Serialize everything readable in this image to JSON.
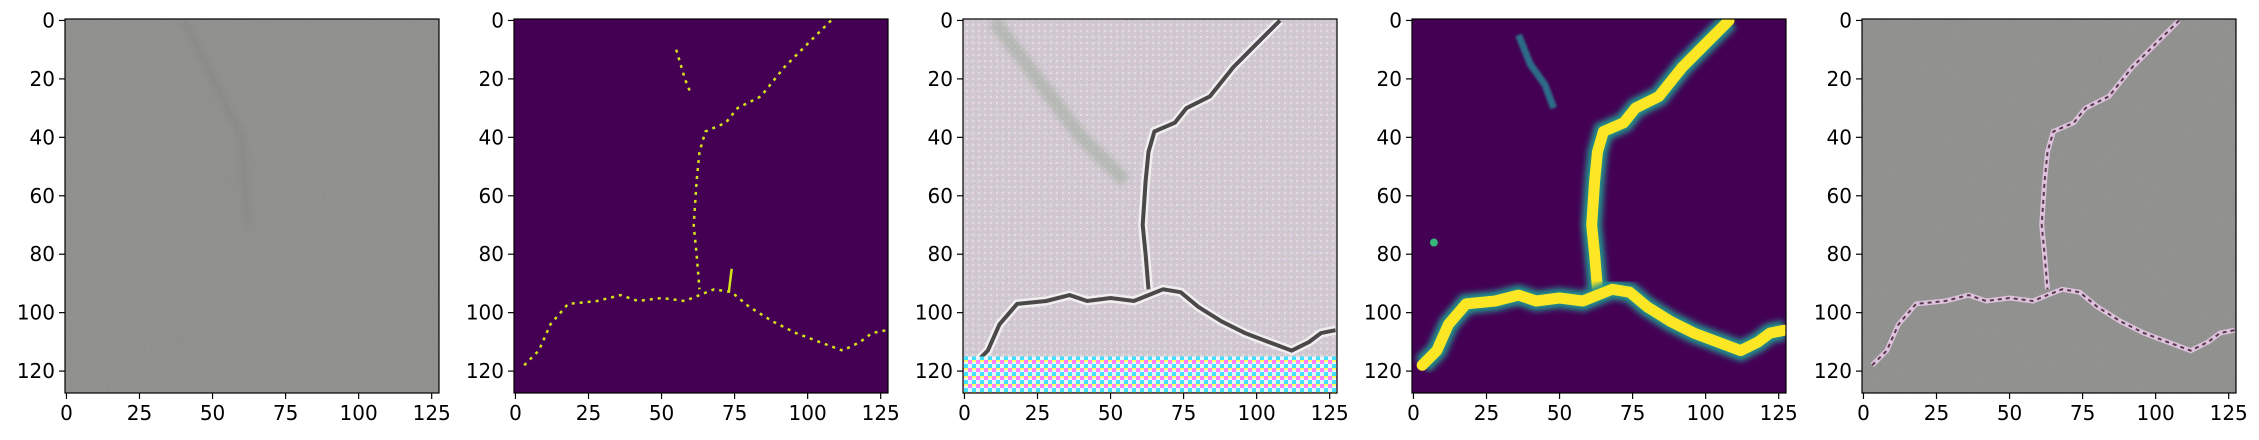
{
  "figure": {
    "panel_count": 5,
    "x_ticks": [
      "0",
      "25",
      "50",
      "75",
      "100",
      "125"
    ],
    "y_ticks": [
      "0",
      "20",
      "40",
      "60",
      "80",
      "100",
      "120"
    ],
    "x_tick_values": [
      0,
      25,
      50,
      75,
      100,
      125
    ],
    "y_tick_values": [
      0,
      20,
      40,
      60,
      80,
      100,
      120
    ],
    "image_extent": [
      -0.5,
      127.5
    ],
    "panels": [
      {
        "kind": "gray-texture",
        "background": "#8c8c8a"
      },
      {
        "kind": "binary-mask",
        "background": "#440154",
        "foreground": "#d2e21b"
      },
      {
        "kind": "pastel-texture",
        "background": "#d8cbd8"
      },
      {
        "kind": "probability-map",
        "background": "#440154",
        "foreground": "#fde725"
      },
      {
        "kind": "overlay",
        "background": "#8d8d8b"
      }
    ]
  }
}
